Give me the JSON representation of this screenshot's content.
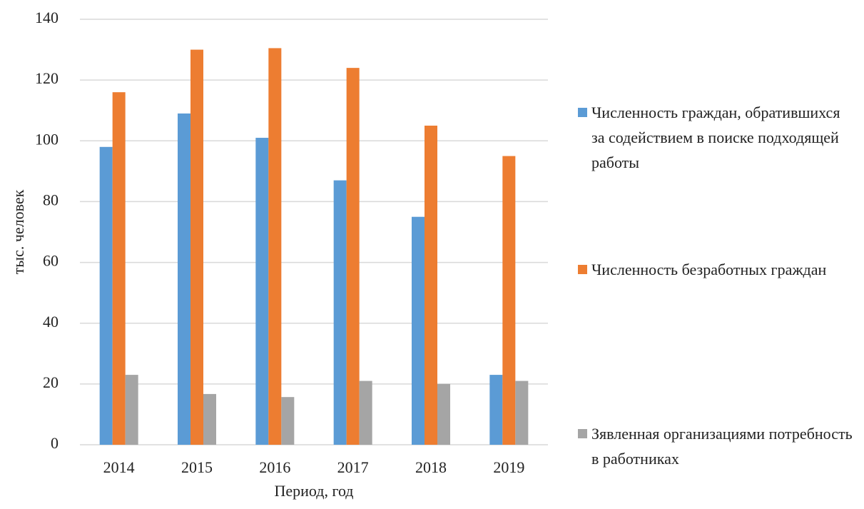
{
  "chart_data": {
    "type": "bar",
    "y_label": "тыс. человек",
    "x_label": "Период, год",
    "categories": [
      "2014",
      "2015",
      "2016",
      "2017",
      "2018",
      "2019"
    ],
    "series": [
      {
        "name": "Численность граждан, обратившихся за содействием в поиске подходящей работы",
        "color": "#5b9bd5",
        "values": [
          98,
          109,
          101,
          87,
          75,
          23
        ]
      },
      {
        "name": "Численность безработных граждан",
        "color": "#ed7d31",
        "values": [
          116,
          130,
          130.5,
          124,
          105,
          95
        ]
      },
      {
        "name": "Зявленная организациями потребность в работниках",
        "color": "#a5a5a5",
        "values": [
          23,
          16.7,
          15.7,
          21,
          20,
          21
        ]
      }
    ],
    "ylim": [
      0,
      140
    ],
    "yticks": [
      0,
      20,
      40,
      60,
      80,
      100,
      120,
      140
    ],
    "grid": true,
    "legend": "right"
  }
}
